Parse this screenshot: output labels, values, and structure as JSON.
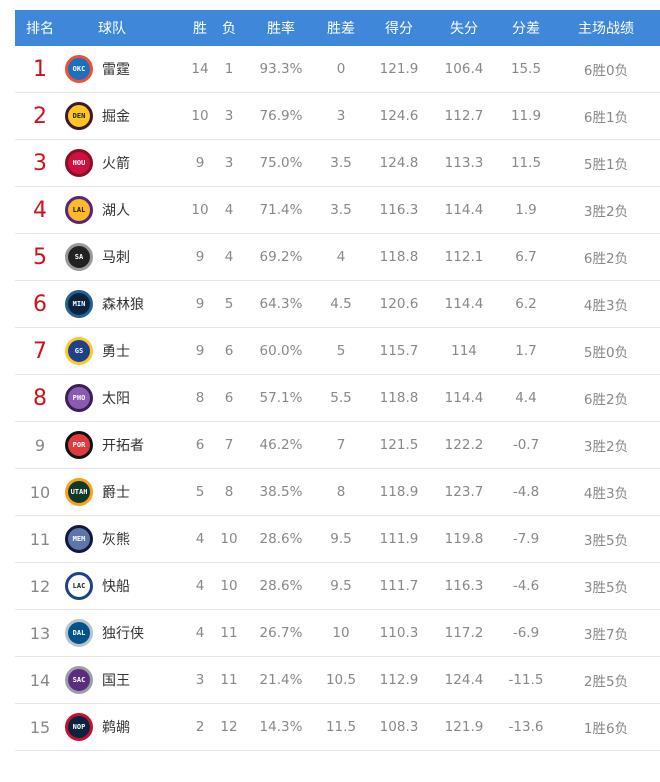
{
  "headers": [
    "排名",
    "球队",
    "胜",
    "负",
    "胜率",
    "胜差",
    "得分",
    "失分",
    "分差",
    "主场战绩"
  ],
  "rows": [
    {
      "rank": "1",
      "abbr": "OKC",
      "team": "雷霆",
      "w": "14",
      "l": "1",
      "pct": "93.3%",
      "gb": "0",
      "pf": "121.9",
      "pa": "106.4",
      "diff": "15.5",
      "home": "6胜0负",
      "colors": [
        "#1d6fc4",
        "#f05133"
      ]
    },
    {
      "rank": "2",
      "abbr": "DEN",
      "team": "掘金",
      "w": "10",
      "l": "3",
      "pct": "76.9%",
      "gb": "3",
      "pf": "124.6",
      "pa": "112.7",
      "diff": "11.9",
      "home": "6胜1负",
      "colors": [
        "#fec524",
        "#3b1a2a"
      ]
    },
    {
      "rank": "3",
      "abbr": "HOU",
      "team": "火箭",
      "w": "9",
      "l": "3",
      "pct": "75.0%",
      "gb": "3.5",
      "pf": "124.8",
      "pa": "113.3",
      "diff": "11.5",
      "home": "5胜1负",
      "colors": [
        "#ce1141",
        "#8a0f20"
      ]
    },
    {
      "rank": "4",
      "abbr": "LAL",
      "team": "湖人",
      "w": "10",
      "l": "4",
      "pct": "71.4%",
      "gb": "3.5",
      "pf": "116.3",
      "pa": "114.4",
      "diff": "1.9",
      "home": "3胜2负",
      "colors": [
        "#fdb927",
        "#552583"
      ]
    },
    {
      "rank": "5",
      "abbr": "SA",
      "team": "马刺",
      "w": "9",
      "l": "4",
      "pct": "69.2%",
      "gb": "4",
      "pf": "118.8",
      "pa": "112.1",
      "diff": "6.7",
      "home": "6胜2负",
      "colors": [
        "#222222",
        "#9a9a9a"
      ]
    },
    {
      "rank": "6",
      "abbr": "MIN",
      "team": "森林狼",
      "w": "9",
      "l": "5",
      "pct": "64.3%",
      "gb": "4.5",
      "pf": "120.6",
      "pa": "114.4",
      "diff": "6.2",
      "home": "4胜3负",
      "colors": [
        "#0c2340",
        "#236192"
      ]
    },
    {
      "rank": "7",
      "abbr": "GS",
      "team": "勇士",
      "w": "9",
      "l": "6",
      "pct": "60.0%",
      "gb": "5",
      "pf": "115.7",
      "pa": "114",
      "diff": "1.7",
      "home": "5胜0负",
      "colors": [
        "#1d428a",
        "#ffc72c"
      ]
    },
    {
      "rank": "8",
      "abbr": "PHO",
      "team": "太阳",
      "w": "8",
      "l": "6",
      "pct": "57.1%",
      "gb": "5.5",
      "pf": "118.8",
      "pa": "114.4",
      "diff": "4.4",
      "home": "6胜2负",
      "colors": [
        "#8a5bb0",
        "#3a1f55"
      ]
    },
    {
      "rank": "9",
      "abbr": "POR",
      "team": "开拓者",
      "w": "6",
      "l": "7",
      "pct": "46.2%",
      "gb": "7",
      "pf": "121.5",
      "pa": "122.2",
      "diff": "-0.7",
      "home": "3胜2负",
      "colors": [
        "#e03a3e",
        "#111111"
      ]
    },
    {
      "rank": "10",
      "abbr": "UTAH",
      "team": "爵士",
      "w": "5",
      "l": "8",
      "pct": "38.5%",
      "gb": "8",
      "pf": "118.9",
      "pa": "123.7",
      "diff": "-4.8",
      "home": "4胜3负",
      "colors": [
        "#0f3a2a",
        "#f9a01b"
      ]
    },
    {
      "rank": "11",
      "abbr": "MEM",
      "team": "灰熊",
      "w": "4",
      "l": "10",
      "pct": "28.6%",
      "gb": "9.5",
      "pf": "111.9",
      "pa": "119.8",
      "diff": "-7.9",
      "home": "3胜5负",
      "colors": [
        "#5d76a9",
        "#12173f"
      ]
    },
    {
      "rank": "12",
      "abbr": "LAC",
      "team": "快船",
      "w": "4",
      "l": "10",
      "pct": "28.6%",
      "gb": "9.5",
      "pf": "111.7",
      "pa": "116.3",
      "diff": "-4.6",
      "home": "3胜5负",
      "colors": [
        "#ffffff",
        "#1d428a"
      ]
    },
    {
      "rank": "13",
      "abbr": "DAL",
      "team": "独行侠",
      "w": "4",
      "l": "11",
      "pct": "26.7%",
      "gb": "10",
      "pf": "110.3",
      "pa": "117.2",
      "diff": "-6.9",
      "home": "3胜7负",
      "colors": [
        "#00538c",
        "#b8c4ca"
      ]
    },
    {
      "rank": "14",
      "abbr": "SAC",
      "team": "国王",
      "w": "3",
      "l": "11",
      "pct": "21.4%",
      "gb": "10.5",
      "pf": "112.9",
      "pa": "124.4",
      "diff": "-11.5",
      "home": "2胜5负",
      "colors": [
        "#5a2d81",
        "#9aa0a6"
      ]
    },
    {
      "rank": "15",
      "abbr": "NOP",
      "team": "鹈鹕",
      "w": "2",
      "l": "12",
      "pct": "14.3%",
      "gb": "11.5",
      "pf": "108.3",
      "pa": "121.9",
      "diff": "-13.6",
      "home": "1胜6负",
      "colors": [
        "#0c2340",
        "#c8102e"
      ]
    }
  ]
}
